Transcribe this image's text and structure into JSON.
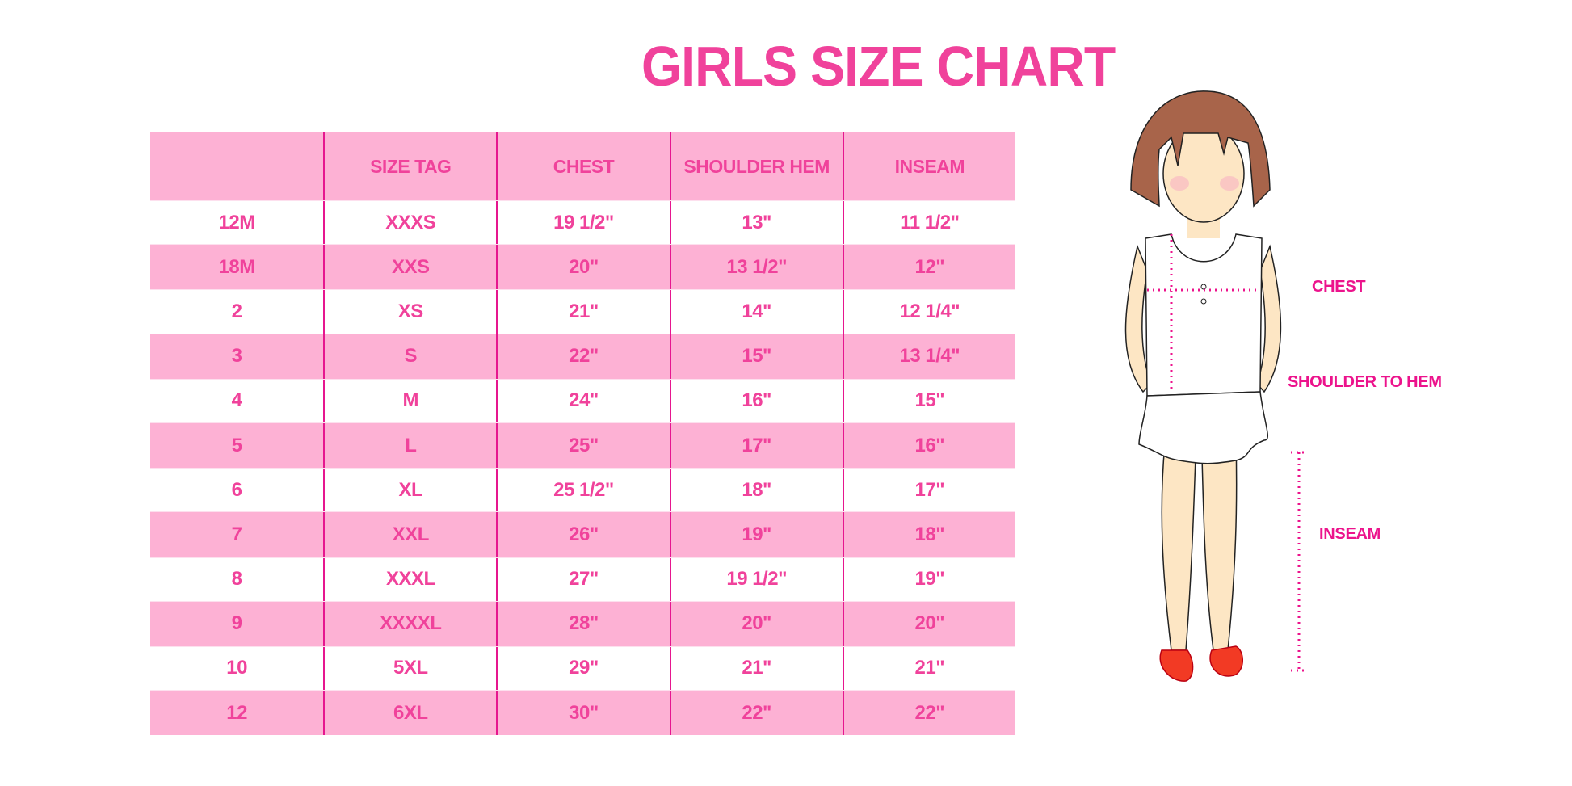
{
  "title": "GIRLS SIZE CHART",
  "table": {
    "headers": [
      "",
      "SIZE TAG",
      "CHEST",
      "SHOULDER HEM",
      "INSEAM"
    ],
    "rows": [
      [
        "12M",
        "XXXS",
        "19 1/2\"",
        "13\"",
        "11 1/2\""
      ],
      [
        "18M",
        "XXS",
        "20\"",
        "13 1/2\"",
        "12\""
      ],
      [
        "2",
        "XS",
        "21\"",
        "14\"",
        "12 1/4\""
      ],
      [
        "3",
        "S",
        "22\"",
        "15\"",
        "13 1/4\""
      ],
      [
        "4",
        "M",
        "24\"",
        "16\"",
        "15\""
      ],
      [
        "5",
        "L",
        "25\"",
        "17\"",
        "16\""
      ],
      [
        "6",
        "XL",
        "25 1/2\"",
        "18\"",
        "17\""
      ],
      [
        "7",
        "XXL",
        "26\"",
        "19\"",
        "18\""
      ],
      [
        "8",
        "XXXL",
        "27\"",
        "19 1/2\"",
        "19\""
      ],
      [
        "9",
        "XXXXL",
        "28\"",
        "20\"",
        "20\""
      ],
      [
        "10",
        "5XL",
        "29\"",
        "21\"",
        "21\""
      ],
      [
        "12",
        "6XL",
        "30\"",
        "22\"",
        "22\""
      ]
    ]
  },
  "figure": {
    "labels": {
      "chest": "CHEST",
      "shoulder_to_hem": "SHOULDER TO HEM",
      "inseam": "INSEAM"
    }
  },
  "colors": {
    "accent": "#f0429b",
    "row_fill": "#fdb1d4",
    "divider": "#e6168f"
  }
}
